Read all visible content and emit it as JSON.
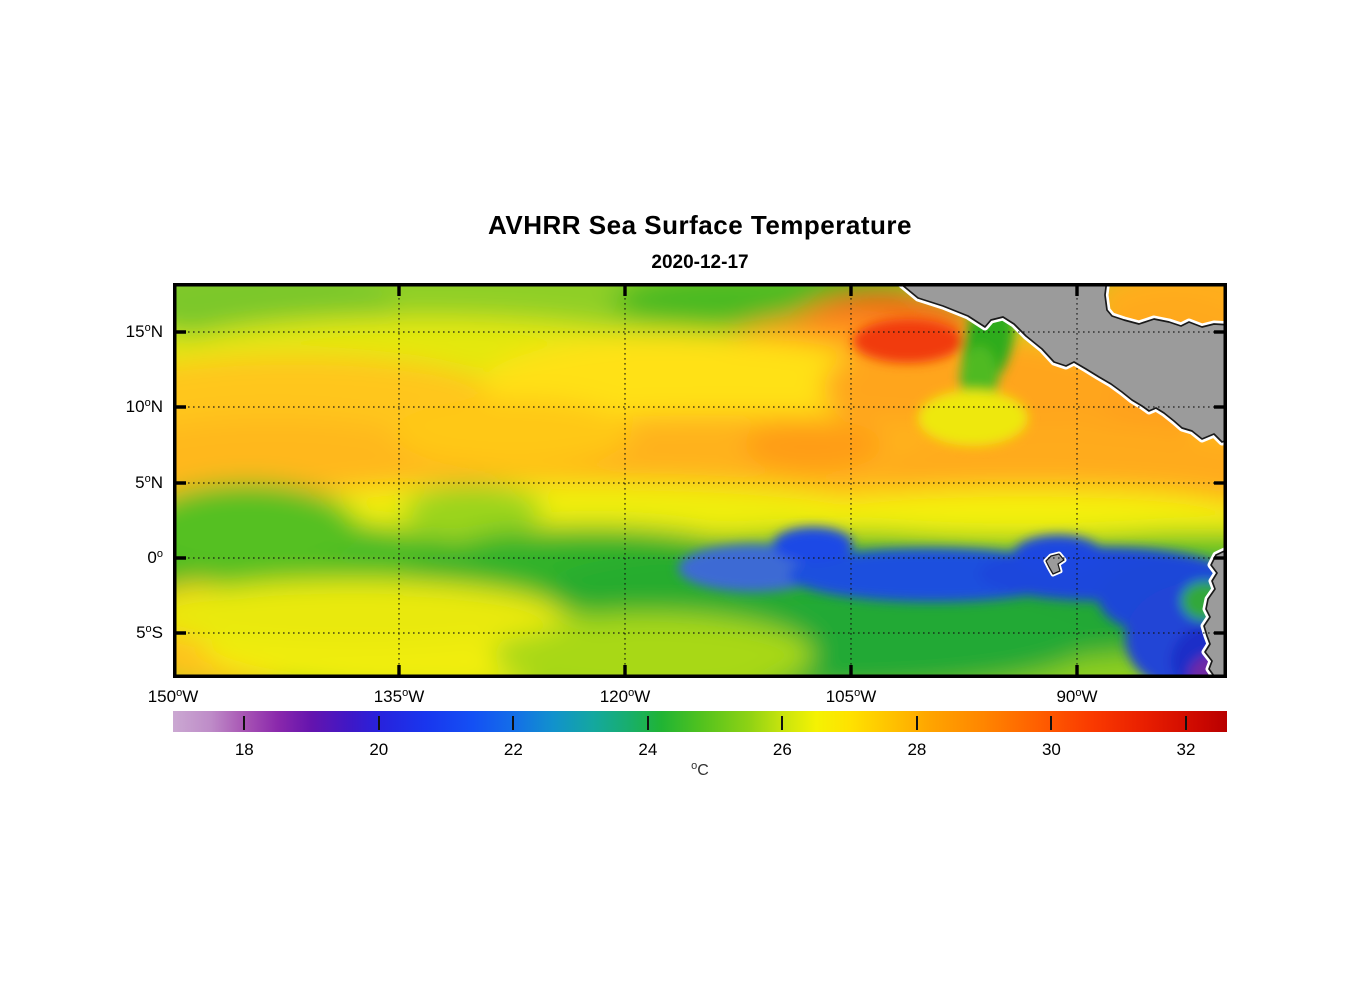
{
  "title": "AVHRR Sea Surface Temperature",
  "subtitle": "2020-12-17",
  "axes": {
    "deg": "o",
    "xticks": [
      {
        "num": "150",
        "hemi": "W"
      },
      {
        "num": "135",
        "hemi": "W"
      },
      {
        "num": "120",
        "hemi": "W"
      },
      {
        "num": "105",
        "hemi": "W"
      },
      {
        "num": "90",
        "hemi": "W"
      }
    ],
    "yticks": [
      {
        "num": "15",
        "hemi": "N"
      },
      {
        "num": "10",
        "hemi": "N"
      },
      {
        "num": "5",
        "hemi": "N"
      },
      {
        "num": "0",
        "hemi": ""
      },
      {
        "num": "5",
        "hemi": "S"
      }
    ]
  },
  "colorbar": {
    "unit_deg": "o",
    "unit_base": "C",
    "range": [
      16.94,
      32.61
    ],
    "ticks": [
      18,
      20,
      22,
      24,
      26,
      28,
      30,
      32
    ],
    "stops": [
      [
        16.94,
        "#CBA8D2"
      ],
      [
        17.5,
        "#BE8CC8"
      ],
      [
        18.0,
        "#A855B4"
      ],
      [
        18.5,
        "#8A28AC"
      ],
      [
        19.0,
        "#6414AE"
      ],
      [
        19.6,
        "#3D18C8"
      ],
      [
        20.0,
        "#2822DC"
      ],
      [
        20.7,
        "#1936EE"
      ],
      [
        21.4,
        "#1450F4"
      ],
      [
        22.0,
        "#146EE8"
      ],
      [
        22.6,
        "#1192CC"
      ],
      [
        23.2,
        "#14A89E"
      ],
      [
        23.7,
        "#18AE6E"
      ],
      [
        24.2,
        "#20B434"
      ],
      [
        24.8,
        "#52C21E"
      ],
      [
        25.5,
        "#8ED214"
      ],
      [
        26.0,
        "#C8E40E"
      ],
      [
        26.5,
        "#F4F203"
      ],
      [
        27.0,
        "#FFE200"
      ],
      [
        27.6,
        "#FFC300"
      ],
      [
        28.2,
        "#FFA400"
      ],
      [
        29.0,
        "#FF8500"
      ],
      [
        29.8,
        "#FF5F00"
      ],
      [
        30.6,
        "#FA3A00"
      ],
      [
        31.4,
        "#E81E00"
      ],
      [
        32.2,
        "#CC0800"
      ],
      [
        32.61,
        "#B80000"
      ]
    ]
  },
  "land_color": "#9B9B9B",
  "chart_data": {
    "type": "heatmap",
    "title": "AVHRR Sea Surface Temperature",
    "date": "2020-12-17",
    "colorbar_label": "°C",
    "colorbar_ticks_c": [
      18,
      20,
      22,
      24,
      26,
      28,
      30,
      32
    ],
    "colorbar_range_c": [
      17,
      32.6
    ],
    "lon_range": [
      "150W",
      "80W"
    ],
    "lat_range": [
      "8S",
      "18.3N"
    ],
    "grid_on": true,
    "grid_lon_deg_w": [
      150,
      145,
      140,
      135,
      130,
      125,
      120,
      115,
      110,
      105,
      100,
      95,
      90,
      85,
      80
    ],
    "grid_lat_deg_n": [
      15,
      10,
      5,
      0,
      -5
    ],
    "sst_c_estimated": [
      [
        25,
        25,
        24.5,
        25,
        24.5,
        24,
        25.5,
        26.5,
        27.5,
        28.5,
        29.5,
        24.5,
        null,
        null,
        27.5
      ],
      [
        26.5,
        26,
        25.5,
        25.5,
        26,
        25.5,
        26,
        26.5,
        27,
        27.5,
        27.5,
        27.5,
        28,
        27.5,
        null
      ],
      [
        27.5,
        27,
        27,
        27,
        27,
        27,
        27.5,
        27.5,
        27.5,
        27.5,
        27.5,
        28,
        27.5,
        27.5,
        27.5
      ],
      [
        25,
        24.5,
        24.5,
        24,
        24.5,
        24,
        23.5,
        23,
        21.5,
        21.5,
        21.5,
        21.5,
        21,
        21,
        null
      ],
      [
        26,
        25.5,
        25.5,
        25.5,
        25,
        24.5,
        24,
        23.5,
        23,
        23,
        22.5,
        22.5,
        21.5,
        21,
        null
      ]
    ],
    "land_masses_visible": [
      "Mexico and Central America (top right)",
      "South America coast (bottom right)",
      "Galapagos islet near 0, 91W"
    ]
  }
}
